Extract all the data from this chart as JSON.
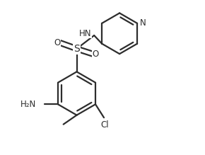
{
  "background": "#ffffff",
  "line_color": "#2d2d2d",
  "line_width": 1.6,
  "font_size": 8.5,
  "figsize": [
    2.9,
    2.19
  ],
  "dpi": 100,
  "xlim": [
    -0.15,
    2.2
  ],
  "ylim": [
    -1.55,
    0.85
  ]
}
